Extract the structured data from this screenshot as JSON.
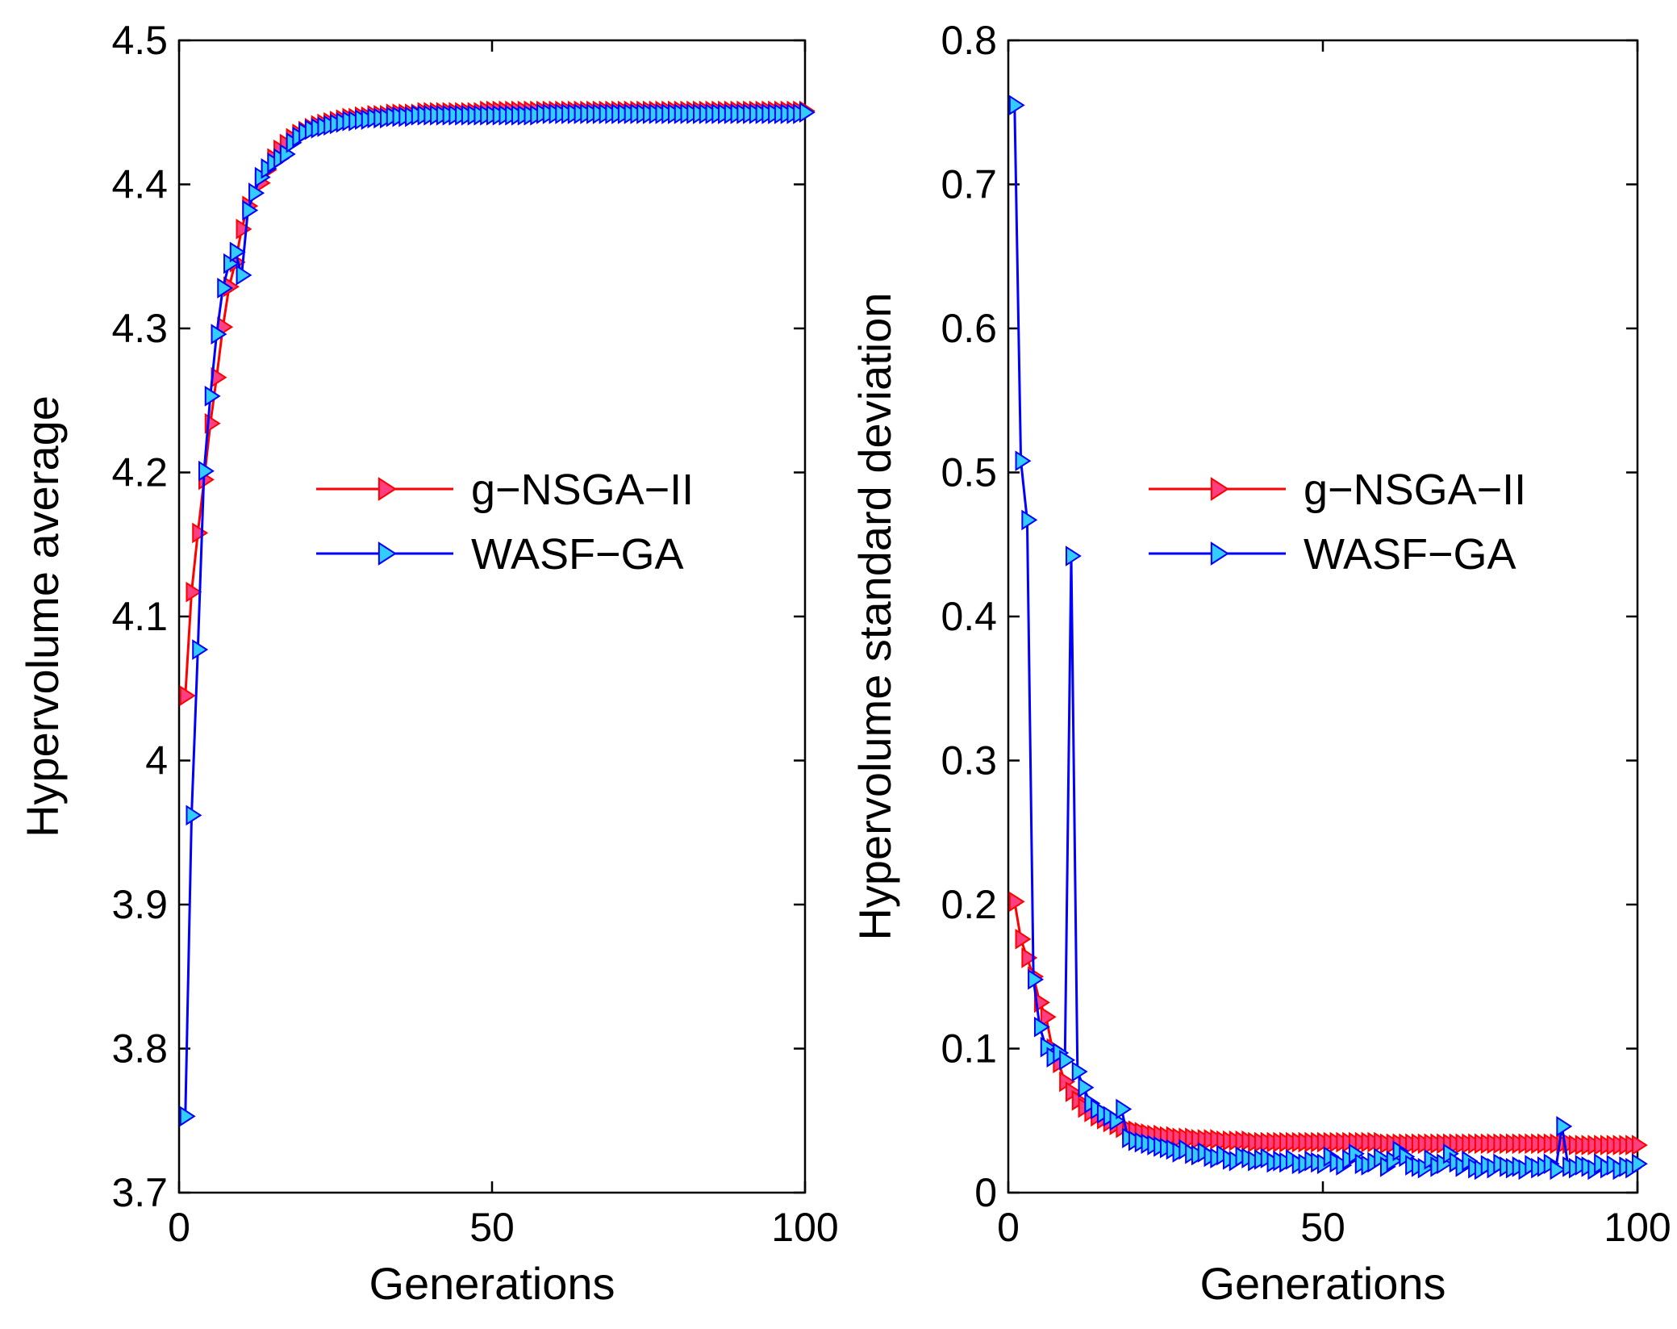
{
  "chart_data": [
    {
      "type": "line",
      "ylabel": "Hypervolume average",
      "xlabel": "Generations",
      "xlim": [
        0,
        100
      ],
      "ylim": [
        3.7,
        4.5
      ],
      "xticks": [
        "0",
        "50",
        "100"
      ],
      "yticks": [
        "3.7",
        "3.8",
        "3.9",
        "4",
        "4.1",
        "4.2",
        "4.3",
        "4.4",
        "4.5"
      ],
      "legend_position": "center-right",
      "series": [
        {
          "name": "g−NSGA−II",
          "color": "#ff0000",
          "marker_fill": "#ff3f7f",
          "x": [
            1,
            2,
            3,
            4,
            5,
            6,
            7,
            8,
            9,
            10,
            11,
            12,
            13,
            14,
            15,
            16,
            17,
            18,
            19,
            20,
            21,
            22,
            23,
            24,
            25,
            26,
            27,
            28,
            29,
            30,
            31,
            32,
            33,
            34,
            35,
            36,
            37,
            38,
            39,
            40,
            41,
            42,
            43,
            44,
            45,
            46,
            47,
            48,
            49,
            50,
            51,
            52,
            53,
            54,
            55,
            56,
            57,
            58,
            59,
            60,
            61,
            62,
            63,
            64,
            65,
            66,
            67,
            68,
            69,
            70,
            71,
            72,
            73,
            74,
            75,
            76,
            77,
            78,
            79,
            80,
            81,
            82,
            83,
            84,
            85,
            86,
            87,
            88,
            89,
            90,
            91,
            92,
            93,
            94,
            95,
            96,
            97,
            98,
            99,
            100
          ],
          "y": [
            4.045,
            4.117,
            4.158,
            4.195,
            4.234,
            4.266,
            4.301,
            4.329,
            4.346,
            4.369,
            4.385,
            4.394,
            4.401,
            4.41,
            4.418,
            4.424,
            4.428,
            4.432,
            4.435,
            4.437,
            4.439,
            4.441,
            4.442,
            4.443,
            4.444,
            4.445,
            4.446,
            4.446,
            4.447,
            4.447,
            4.448,
            4.448,
            4.448,
            4.449,
            4.449,
            4.449,
            4.449,
            4.449,
            4.45,
            4.45,
            4.45,
            4.45,
            4.45,
            4.45,
            4.45,
            4.45,
            4.45,
            4.45,
            4.451,
            4.451,
            4.451,
            4.451,
            4.451,
            4.451,
            4.451,
            4.451,
            4.451,
            4.451,
            4.451,
            4.451,
            4.451,
            4.451,
            4.451,
            4.451,
            4.451,
            4.451,
            4.451,
            4.451,
            4.451,
            4.451,
            4.451,
            4.451,
            4.451,
            4.451,
            4.451,
            4.451,
            4.451,
            4.451,
            4.451,
            4.451,
            4.451,
            4.451,
            4.451,
            4.451,
            4.451,
            4.451,
            4.451,
            4.451,
            4.451,
            4.451,
            4.451,
            4.451,
            4.451,
            4.451,
            4.451,
            4.451,
            4.451,
            4.451,
            4.451,
            4.451
          ]
        },
        {
          "name": "WASF−GA",
          "color": "#0000ff",
          "marker_fill": "#33ccff",
          "x": [
            1,
            2,
            3,
            4,
            5,
            6,
            7,
            8,
            9,
            10,
            11,
            12,
            13,
            14,
            15,
            16,
            17,
            18,
            19,
            20,
            21,
            22,
            23,
            24,
            25,
            26,
            27,
            28,
            29,
            30,
            31,
            32,
            33,
            34,
            35,
            36,
            37,
            38,
            39,
            40,
            41,
            42,
            43,
            44,
            45,
            46,
            47,
            48,
            49,
            50,
            51,
            52,
            53,
            54,
            55,
            56,
            57,
            58,
            59,
            60,
            61,
            62,
            63,
            64,
            65,
            66,
            67,
            68,
            69,
            70,
            71,
            72,
            73,
            74,
            75,
            76,
            77,
            78,
            79,
            80,
            81,
            82,
            83,
            84,
            85,
            86,
            87,
            88,
            89,
            90,
            91,
            92,
            93,
            94,
            95,
            96,
            97,
            98,
            99,
            100
          ],
          "y": [
            3.753,
            3.962,
            4.077,
            4.201,
            4.253,
            4.296,
            4.328,
            4.345,
            4.353,
            4.337,
            4.382,
            4.394,
            4.405,
            4.411,
            4.415,
            4.418,
            4.421,
            4.429,
            4.433,
            4.436,
            4.438,
            4.439,
            4.44,
            4.441,
            4.442,
            4.443,
            4.444,
            4.444,
            4.445,
            4.445,
            4.446,
            4.446,
            4.446,
            4.447,
            4.447,
            4.447,
            4.447,
            4.448,
            4.448,
            4.448,
            4.448,
            4.448,
            4.448,
            4.448,
            4.448,
            4.448,
            4.448,
            4.448,
            4.448,
            4.448,
            4.448,
            4.448,
            4.448,
            4.448,
            4.448,
            4.448,
            4.448,
            4.449,
            4.449,
            4.449,
            4.449,
            4.449,
            4.449,
            4.449,
            4.449,
            4.449,
            4.449,
            4.449,
            4.449,
            4.449,
            4.449,
            4.449,
            4.449,
            4.449,
            4.449,
            4.449,
            4.449,
            4.449,
            4.449,
            4.449,
            4.449,
            4.449,
            4.449,
            4.449,
            4.449,
            4.449,
            4.449,
            4.449,
            4.449,
            4.449,
            4.449,
            4.449,
            4.449,
            4.449,
            4.449,
            4.449,
            4.449,
            4.449,
            4.449,
            4.45
          ]
        }
      ]
    },
    {
      "type": "line",
      "ylabel": "Hypervolume standard deviation",
      "xlabel": "Generations",
      "xlim": [
        0,
        100
      ],
      "ylim": [
        0,
        0.8
      ],
      "xticks": [
        "0",
        "50",
        "100"
      ],
      "yticks": [
        "0",
        "0.1",
        "0.2",
        "0.3",
        "0.4",
        "0.5",
        "0.6",
        "0.7",
        "0.8"
      ],
      "legend_position": "center-right",
      "series": [
        {
          "name": "g−NSGA−II",
          "color": "#ff0000",
          "marker_fill": "#ff3f7f",
          "x": [
            1,
            2,
            3,
            4,
            5,
            6,
            7,
            8,
            9,
            10,
            11,
            12,
            13,
            14,
            15,
            16,
            17,
            18,
            19,
            20,
            21,
            22,
            23,
            24,
            25,
            26,
            27,
            28,
            29,
            30,
            31,
            32,
            33,
            34,
            35,
            36,
            37,
            38,
            39,
            40,
            41,
            42,
            43,
            44,
            45,
            46,
            47,
            48,
            49,
            50,
            51,
            52,
            53,
            54,
            55,
            56,
            57,
            58,
            59,
            60,
            61,
            62,
            63,
            64,
            65,
            66,
            67,
            68,
            69,
            70,
            71,
            72,
            73,
            74,
            75,
            76,
            77,
            78,
            79,
            80,
            81,
            82,
            83,
            84,
            85,
            86,
            87,
            88,
            89,
            90,
            91,
            92,
            93,
            94,
            95,
            96,
            97,
            98,
            99,
            100
          ],
          "y": [
            0.202,
            0.176,
            0.163,
            0.15,
            0.132,
            0.122,
            0.1,
            0.09,
            0.077,
            0.07,
            0.064,
            0.059,
            0.056,
            0.053,
            0.051,
            0.049,
            0.047,
            0.045,
            0.044,
            0.043,
            0.042,
            0.041,
            0.04,
            0.04,
            0.039,
            0.039,
            0.038,
            0.038,
            0.038,
            0.037,
            0.037,
            0.037,
            0.037,
            0.036,
            0.036,
            0.036,
            0.036,
            0.036,
            0.035,
            0.035,
            0.035,
            0.035,
            0.035,
            0.035,
            0.035,
            0.035,
            0.035,
            0.035,
            0.035,
            0.035,
            0.035,
            0.035,
            0.035,
            0.035,
            0.035,
            0.035,
            0.035,
            0.035,
            0.035,
            0.034,
            0.034,
            0.034,
            0.034,
            0.034,
            0.034,
            0.034,
            0.034,
            0.034,
            0.034,
            0.034,
            0.034,
            0.034,
            0.034,
            0.034,
            0.034,
            0.034,
            0.034,
            0.034,
            0.034,
            0.034,
            0.034,
            0.034,
            0.034,
            0.034,
            0.034,
            0.034,
            0.034,
            0.034,
            0.034,
            0.033,
            0.033,
            0.033,
            0.033,
            0.033,
            0.033,
            0.033,
            0.033,
            0.033,
            0.033,
            0.033
          ]
        },
        {
          "name": "WASF−GA",
          "color": "#0000ff",
          "marker_fill": "#33ccff",
          "x": [
            1,
            2,
            3,
            4,
            5,
            6,
            7,
            8,
            9,
            10,
            11,
            12,
            13,
            14,
            15,
            16,
            17,
            18,
            19,
            20,
            21,
            22,
            23,
            24,
            25,
            26,
            27,
            28,
            29,
            30,
            31,
            32,
            33,
            34,
            35,
            36,
            37,
            38,
            39,
            40,
            41,
            42,
            43,
            44,
            45,
            46,
            47,
            48,
            49,
            50,
            51,
            52,
            53,
            54,
            55,
            56,
            57,
            58,
            59,
            60,
            61,
            62,
            63,
            64,
            65,
            66,
            67,
            68,
            69,
            70,
            71,
            72,
            73,
            74,
            75,
            76,
            77,
            78,
            79,
            80,
            81,
            82,
            83,
            84,
            85,
            86,
            87,
            88,
            89,
            90,
            91,
            92,
            93,
            94,
            95,
            96,
            97,
            98,
            99,
            100
          ],
          "y": [
            0.755,
            0.508,
            0.467,
            0.148,
            0.115,
            0.101,
            0.094,
            0.097,
            0.092,
            0.442,
            0.084,
            0.073,
            0.062,
            0.058,
            0.055,
            0.053,
            0.05,
            0.058,
            0.038,
            0.036,
            0.035,
            0.034,
            0.033,
            0.032,
            0.031,
            0.03,
            0.028,
            0.03,
            0.027,
            0.026,
            0.028,
            0.025,
            0.024,
            0.026,
            0.023,
            0.022,
            0.025,
            0.024,
            0.022,
            0.023,
            0.024,
            0.021,
            0.022,
            0.021,
            0.023,
            0.02,
            0.02,
            0.022,
            0.021,
            0.02,
            0.025,
            0.021,
            0.019,
            0.023,
            0.027,
            0.02,
            0.019,
            0.021,
            0.024,
            0.018,
            0.022,
            0.029,
            0.025,
            0.019,
            0.018,
            0.017,
            0.023,
            0.018,
            0.02,
            0.027,
            0.021,
            0.018,
            0.022,
            0.017,
            0.016,
            0.019,
            0.017,
            0.02,
            0.018,
            0.017,
            0.018,
            0.016,
            0.019,
            0.017,
            0.018,
            0.02,
            0.016,
            0.046,
            0.018,
            0.017,
            0.019,
            0.018,
            0.016,
            0.02,
            0.017,
            0.019,
            0.016,
            0.018,
            0.017,
            0.02
          ]
        }
      ]
    }
  ]
}
